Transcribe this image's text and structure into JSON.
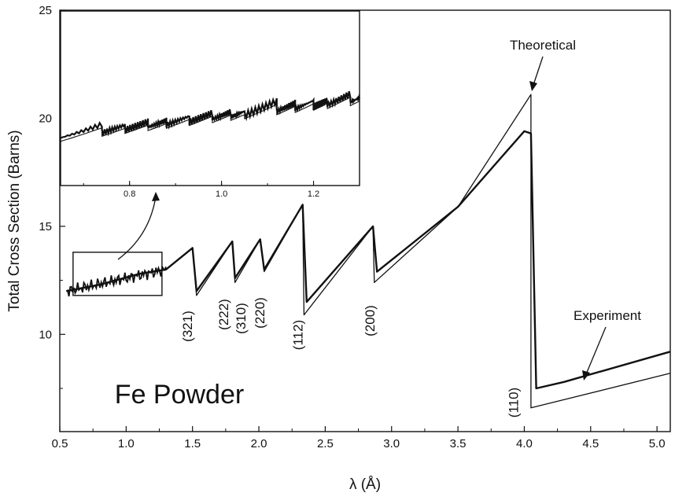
{
  "chart_data": {
    "type": "line",
    "xlabel": "λ (Å)",
    "ylabel": "Total Cross Section (Barns)",
    "xlim": [
      0.5,
      5.1
    ],
    "ylim": [
      5.5,
      25
    ],
    "xticks": [
      0.5,
      1.0,
      1.5,
      2.0,
      2.5,
      3.0,
      3.5,
      4.0,
      4.5,
      5.0
    ],
    "xtick_labels": [
      "0.5",
      "1.0",
      "1.5",
      "2.0",
      "2.5",
      "3.0",
      "3.5",
      "4.0",
      "4.5",
      "5.0"
    ],
    "yticks": [
      10,
      15,
      20,
      25
    ],
    "ytick_labels": [
      "10",
      "15",
      "20",
      "25"
    ],
    "series": [
      {
        "name": "Theoretical",
        "x": [
          0.55,
          0.8,
          1.1,
          1.3,
          1.5,
          1.53,
          1.8,
          1.82,
          2.01,
          2.04,
          2.33,
          2.34,
          2.86,
          2.87,
          3.5,
          4.05,
          4.05,
          5.1
        ],
        "y": [
          12.0,
          12.3,
          12.8,
          13.0,
          14.0,
          11.8,
          14.3,
          12.4,
          14.4,
          12.9,
          16.0,
          10.9,
          15.0,
          12.4,
          15.9,
          21.1,
          6.6,
          8.2
        ]
      },
      {
        "name": "Experiment",
        "x": [
          0.55,
          0.8,
          1.1,
          1.3,
          1.5,
          1.53,
          1.8,
          1.82,
          2.01,
          2.04,
          2.33,
          2.36,
          2.86,
          2.89,
          3.5,
          4.0,
          4.05,
          4.09,
          4.3,
          5.1
        ],
        "y": [
          12.0,
          12.3,
          12.8,
          13.0,
          14.0,
          12.0,
          14.3,
          12.6,
          14.4,
          13.0,
          16.0,
          11.5,
          15.0,
          12.9,
          15.9,
          19.4,
          19.3,
          7.5,
          7.8,
          9.2
        ]
      }
    ],
    "inset": {
      "xlim": [
        0.65,
        1.3
      ],
      "xticks": [
        0.8,
        1.0,
        1.2
      ],
      "xtick_labels": [
        "0.8",
        "1.0",
        "1.2"
      ],
      "main_range_box": {
        "x": [
          0.6,
          1.27
        ],
        "y": [
          11.8,
          13.8
        ]
      }
    },
    "peak_labels": [
      {
        "text": "(321)",
        "x": 1.53
      },
      {
        "text": "(222)",
        "x": 1.78
      },
      {
        "text": "(310)",
        "x": 1.84
      },
      {
        "text": "(220)",
        "x": 2.04
      },
      {
        "text": "(112)",
        "x": 2.33
      },
      {
        "text": "(200)",
        "x": 2.87
      },
      {
        "text": "(110)",
        "x": 4.0
      }
    ],
    "annotations": {
      "theoretical": "Theoretical",
      "experiment": "Experiment",
      "sample": "Fe Powder"
    }
  }
}
